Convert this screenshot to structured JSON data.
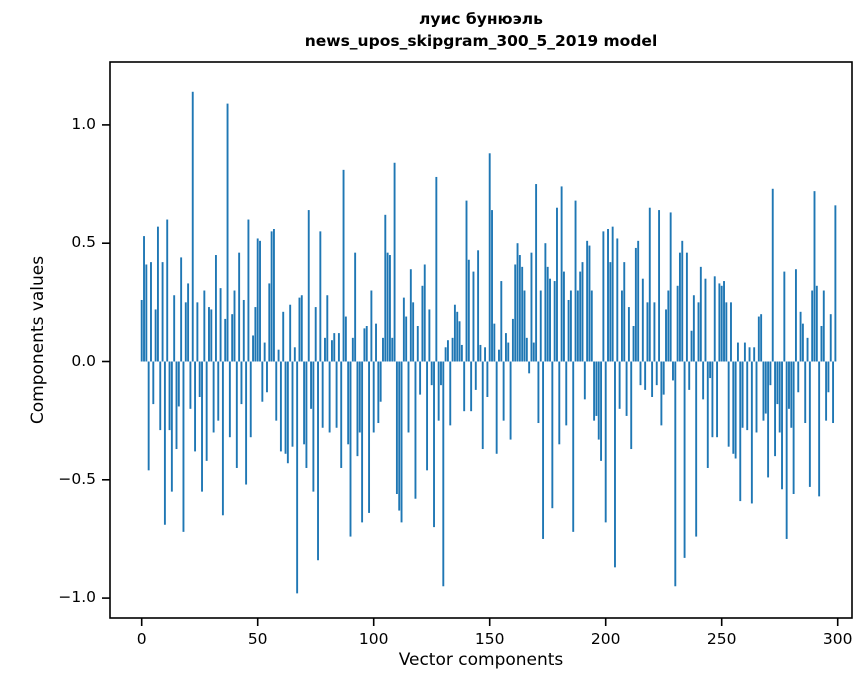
{
  "figure": {
    "title_line1": "луис бунюэль",
    "title_line2": "news_upos_skipgram_300_5_2019 model",
    "xlabel": "Vector components",
    "ylabel": "Components values",
    "background_color": "#ffffff",
    "spine_color": "#000000"
  },
  "chart_data": {
    "type": "bar",
    "title": "луис бунюэль\nnews_upos_skipgram_300_5_2019 model",
    "xlabel": "Vector components",
    "ylabel": "Components values",
    "bar_color": "#1f77b4",
    "grid": false,
    "legend": null,
    "n_components": 300,
    "x_ticks": [
      0,
      50,
      100,
      150,
      200,
      250,
      300
    ],
    "x_tick_labels": [
      "0",
      "50",
      "100",
      "150",
      "200",
      "250",
      "300"
    ],
    "y_ticks": [
      -1.0,
      -0.5,
      0.0,
      0.5,
      1.0
    ],
    "y_tick_labels": [
      "−1.0",
      "−0.5",
      "0.0",
      "0.5",
      "1.0"
    ],
    "xlim": [
      -13.7,
      306.2
    ],
    "ylim": [
      -1.08,
      1.27
    ],
    "values": [
      0.26,
      0.53,
      0.41,
      -0.46,
      0.42,
      -0.18,
      0.22,
      0.57,
      -0.29,
      0.42,
      -0.69,
      0.6,
      -0.29,
      -0.55,
      0.28,
      -0.37,
      -0.19,
      0.44,
      -0.72,
      0.25,
      0.33,
      -0.2,
      1.14,
      -0.38,
      0.25,
      -0.15,
      -0.55,
      0.3,
      -0.42,
      0.23,
      0.22,
      -0.3,
      0.45,
      -0.25,
      0.31,
      -0.65,
      0.18,
      1.09,
      -0.32,
      0.2,
      0.3,
      -0.45,
      0.46,
      -0.18,
      0.26,
      -0.52,
      0.6,
      -0.32,
      0.11,
      0.23,
      0.52,
      0.51,
      -0.17,
      0.08,
      -0.13,
      0.33,
      0.55,
      0.56,
      -0.25,
      0.05,
      -0.38,
      0.21,
      -0.39,
      -0.43,
      0.24,
      -0.36,
      0.06,
      -0.98,
      0.27,
      0.28,
      -0.35,
      -0.45,
      0.64,
      -0.2,
      -0.55,
      0.23,
      -0.84,
      0.55,
      -0.28,
      0.1,
      0.28,
      -0.3,
      0.09,
      0.12,
      -0.28,
      0.12,
      -0.45,
      0.81,
      0.19,
      -0.35,
      -0.74,
      0.1,
      0.46,
      -0.4,
      -0.3,
      -0.68,
      0.14,
      0.15,
      -0.64,
      0.3,
      -0.3,
      0.16,
      -0.26,
      -0.17,
      0.1,
      0.62,
      0.46,
      0.45,
      0.1,
      0.84,
      -0.56,
      -0.63,
      -0.68,
      0.27,
      0.19,
      -0.3,
      0.39,
      0.25,
      -0.58,
      0.15,
      -0.14,
      0.32,
      0.41,
      -0.46,
      0.22,
      -0.1,
      -0.7,
      0.78,
      -0.25,
      -0.1,
      -0.95,
      0.06,
      0.09,
      -0.27,
      0.1,
      0.24,
      0.21,
      0.17,
      0.07,
      -0.21,
      0.68,
      0.43,
      -0.21,
      0.38,
      -0.12,
      0.47,
      0.07,
      -0.37,
      0.06,
      -0.15,
      0.88,
      0.64,
      0.16,
      -0.39,
      0.05,
      0.34,
      -0.25,
      0.12,
      0.08,
      -0.33,
      0.18,
      0.41,
      0.5,
      0.45,
      0.4,
      0.3,
      0.1,
      -0.05,
      0.46,
      0.08,
      0.75,
      -0.26,
      0.3,
      -0.75,
      0.5,
      0.4,
      0.35,
      -0.62,
      0.34,
      0.65,
      -0.35,
      0.74,
      0.38,
      -0.27,
      0.26,
      0.3,
      -0.72,
      0.68,
      0.3,
      0.38,
      0.42,
      -0.16,
      0.51,
      0.49,
      0.3,
      -0.25,
      -0.23,
      -0.33,
      -0.42,
      0.55,
      -0.68,
      0.56,
      0.42,
      0.57,
      -0.87,
      0.52,
      -0.2,
      0.3,
      0.42,
      -0.23,
      0.23,
      -0.37,
      0.15,
      0.48,
      0.51,
      -0.1,
      0.35,
      -0.12,
      0.25,
      0.65,
      -0.15,
      0.25,
      -0.1,
      0.64,
      -0.27,
      -0.14,
      0.22,
      0.3,
      0.63,
      -0.08,
      -0.95,
      0.32,
      0.46,
      0.51,
      -0.83,
      0.46,
      -0.12,
      0.13,
      0.28,
      -0.74,
      0.25,
      0.4,
      -0.16,
      0.35,
      -0.45,
      -0.07,
      -0.32,
      0.36,
      -0.32,
      0.33,
      0.32,
      0.34,
      0.25,
      -0.36,
      0.25,
      -0.39,
      -0.41,
      0.08,
      -0.59,
      -0.28,
      0.08,
      -0.29,
      0.06,
      -0.6,
      0.06,
      -0.3,
      0.19,
      0.2,
      -0.25,
      -0.22,
      -0.49,
      -0.1,
      0.73,
      -0.4,
      -0.18,
      -0.3,
      -0.54,
      0.38,
      -0.75,
      -0.2,
      -0.28,
      -0.56,
      0.39,
      -0.13,
      0.21,
      0.16,
      -0.26,
      0.1,
      -0.53,
      0.3,
      0.72,
      0.32,
      -0.57,
      0.15,
      0.3,
      -0.25,
      -0.13,
      0.2,
      -0.26,
      0.66
    ]
  },
  "layout_note": ""
}
